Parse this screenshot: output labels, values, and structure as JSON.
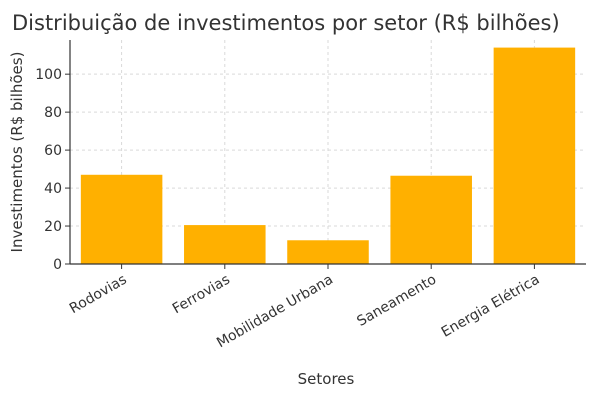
{
  "chart_data": {
    "type": "bar",
    "title": "Distribuição de investimentos por setor (R$ bilhões)",
    "xlabel": "Setores",
    "ylabel": "Investimentos (R$ bilhões)",
    "categories": [
      "Rodovias",
      "Ferrovias",
      "Mobilidade Urbana",
      "Saneamento",
      "Energia Elétrica"
    ],
    "values": [
      47,
      20.5,
      12.5,
      46.5,
      114
    ],
    "ylim": [
      0,
      118
    ],
    "yticks": [
      0,
      20,
      40,
      60,
      80,
      100
    ],
    "grid": true,
    "colors": {
      "bar": "#FFB000",
      "grid": "#d9d9d9",
      "axis": "#333333"
    }
  }
}
